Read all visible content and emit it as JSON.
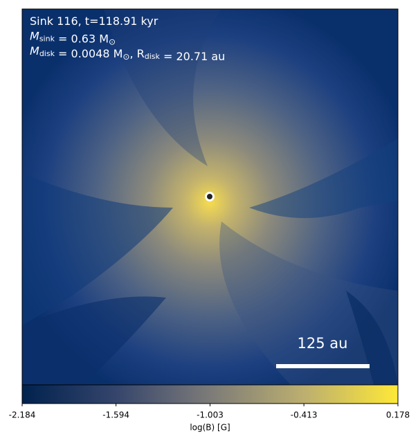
{
  "chart_data": {
    "type": "image",
    "annotations": [
      [
        {
          "text": "Sink 116, t=118.91 kyr"
        }
      ],
      [
        {
          "text": "M",
          "sub": "sink"
        },
        {
          "text": " = 0.63 M"
        },
        {
          "text": "⊙",
          "sub_symbol": true
        }
      ],
      [
        {
          "text": "M",
          "sub": "disk"
        },
        {
          "text": " = 0.0048 M"
        },
        {
          "text": "⊙",
          "sub_symbol": true
        },
        {
          "text": ", R"
        },
        {
          "text": "",
          "sub": "disk"
        },
        {
          "text": " = 20.71 au"
        }
      ]
    ],
    "scale_bar": "125 au",
    "colorbar": {
      "label": "log(B) [G]",
      "xlim": [
        -2.184,
        0.178
      ],
      "xticks": [
        -2.184,
        -1.594,
        -1.003,
        -0.413,
        0.178
      ],
      "colors": [
        "#00224e",
        "#35456c",
        "#7c7b78",
        "#bcaf6f",
        "#fee838"
      ]
    }
  }
}
